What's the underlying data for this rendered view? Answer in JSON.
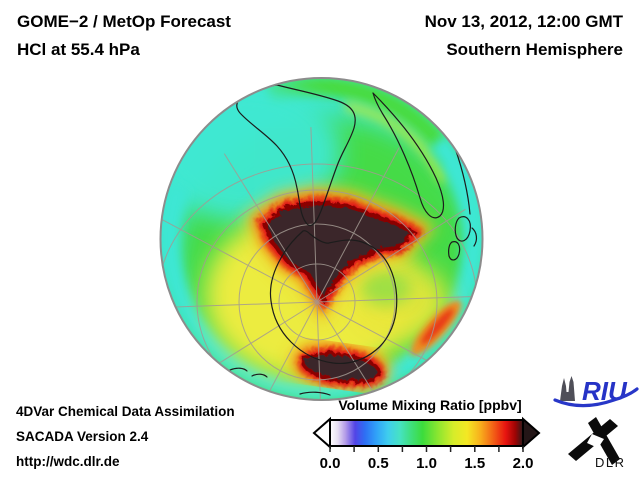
{
  "header": {
    "product": "GOME−2 / MetOp Forecast",
    "species_level": "HCl at 55.4 hPa",
    "datetime": "Nov 13, 2012, 12:00 GMT",
    "region": "Southern Hemisphere"
  },
  "footer": {
    "line1": "4DVar Chemical Data Assimilation",
    "line2": "SACADA Version 2.4",
    "line3": "http://wdc.dlr.de"
  },
  "colorbar": {
    "title": "Volume Mixing Ratio [ppbv]",
    "ticks": [
      "0.0",
      "0.5",
      "1.0",
      "1.5",
      "2.0"
    ],
    "min": 0.0,
    "max": 2.0,
    "gradient": [
      {
        "at": 0.0,
        "color": "#ffffff"
      },
      {
        "at": 0.04,
        "color": "#e6def2"
      },
      {
        "at": 0.08,
        "color": "#b49ce8"
      },
      {
        "at": 0.13,
        "color": "#5244e6"
      },
      {
        "at": 0.18,
        "color": "#2e6ef4"
      },
      {
        "at": 0.24,
        "color": "#30a2f8"
      },
      {
        "at": 0.3,
        "color": "#3fcdee"
      },
      {
        "at": 0.36,
        "color": "#46e2c4"
      },
      {
        "at": 0.42,
        "color": "#3fdf7d"
      },
      {
        "at": 0.48,
        "color": "#3cdc3c"
      },
      {
        "at": 0.56,
        "color": "#8ce630"
      },
      {
        "at": 0.64,
        "color": "#d6ec2a"
      },
      {
        "at": 0.71,
        "color": "#f4e824"
      },
      {
        "at": 0.78,
        "color": "#f8ae1c"
      },
      {
        "at": 0.85,
        "color": "#f25c16"
      },
      {
        "at": 0.91,
        "color": "#e81410"
      },
      {
        "at": 0.96,
        "color": "#9e0404"
      },
      {
        "at": 1.0,
        "color": "#2e1b1c"
      }
    ]
  },
  "logos": {
    "riu": "RIU",
    "dlr": "DLR"
  },
  "map": {
    "palette": {
      "low_cyan": "#3fe6ce",
      "mid_green": "#45db47",
      "mid_yellow": "#ecec3f",
      "high_red": "#e01113",
      "over_range_dark": "#3b282a",
      "graticule": "#a39a92",
      "coastline": "#1c1c1c"
    }
  }
}
